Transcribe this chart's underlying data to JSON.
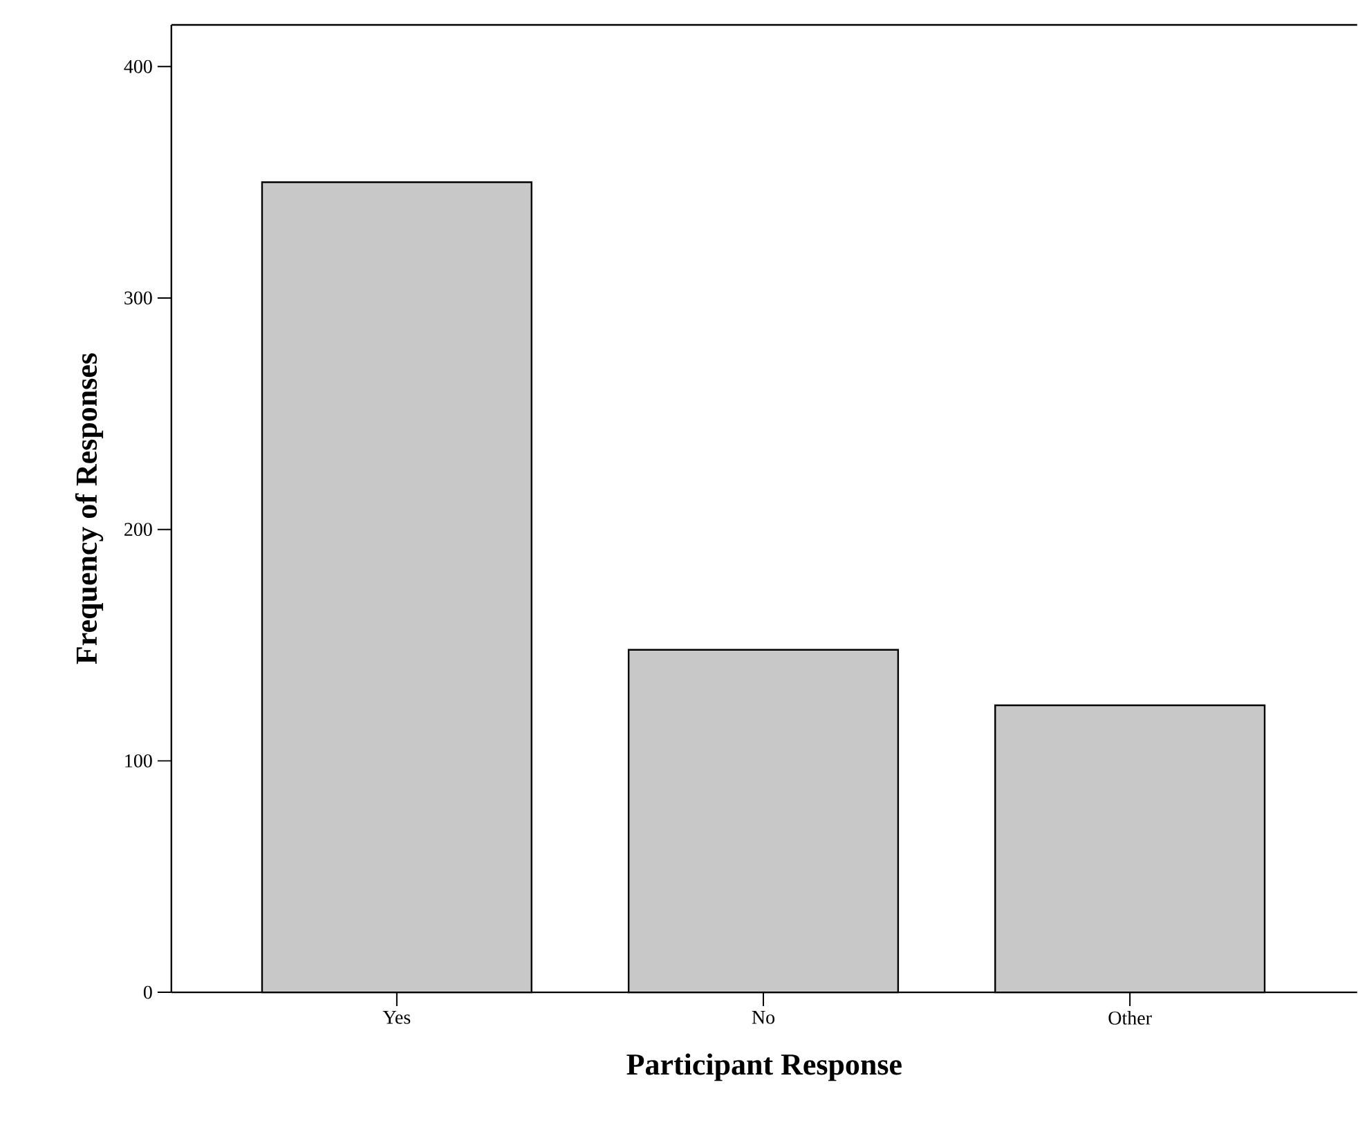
{
  "chart_data": {
    "type": "bar",
    "xlabel": "Participant Response",
    "ylabel": "Frequency of Responses",
    "categories": [
      "Yes",
      "No",
      "Other"
    ],
    "values": [
      350,
      148,
      124
    ],
    "color": "#c8c8c8",
    "ylim": [
      0,
      418
    ],
    "yticks": [
      0,
      100,
      200,
      300,
      400
    ],
    "grid": false
  }
}
